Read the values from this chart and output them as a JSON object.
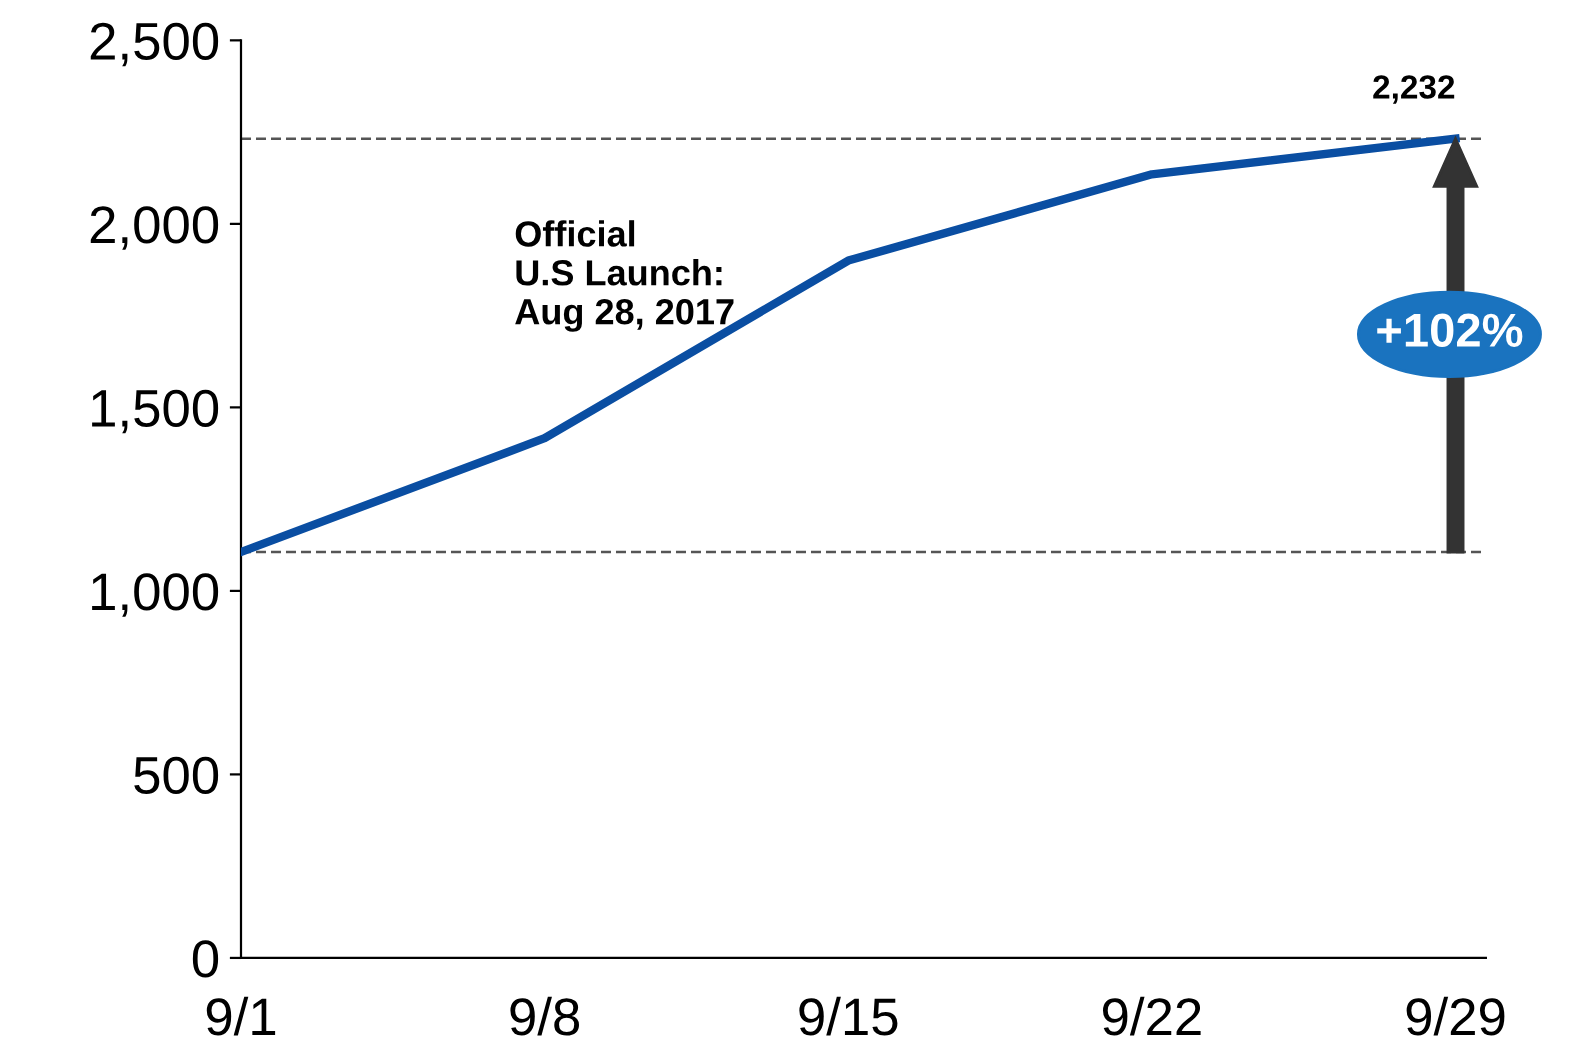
{
  "chart_data": {
    "type": "line",
    "categories": [
      "9/1",
      "9/8",
      "9/15",
      "9/22",
      "9/29"
    ],
    "series": [
      {
        "color": "#0a4ea2",
        "values": [
          1106,
          1416,
          1900,
          2135,
          2232
        ]
      }
    ],
    "value_labels": [
      null,
      null,
      null,
      null,
      "2,232"
    ],
    "ylim": [
      0,
      2500
    ],
    "yticks": [
      {
        "value": 0,
        "label": "0"
      },
      {
        "value": 500,
        "label": "500"
      },
      {
        "value": 1000,
        "label": "1,000"
      },
      {
        "value": 1500,
        "label": "1,500"
      },
      {
        "value": 2000,
        "label": "2,000"
      },
      {
        "value": 2500,
        "label": "2,500"
      }
    ],
    "ref_lines": [
      {
        "axis": "y",
        "value": 1106,
        "color": "#555555",
        "line_style": "dashed"
      },
      {
        "axis": "y",
        "value": 2232,
        "color": "#555555",
        "line_style": "dashed"
      }
    ],
    "annotations": [
      "Official\nU.S Launch:\nAug 28, 2017",
      "+102%"
    ],
    "grid": false,
    "legend": false,
    "marker": "none",
    "line_style": "solid"
  }
}
